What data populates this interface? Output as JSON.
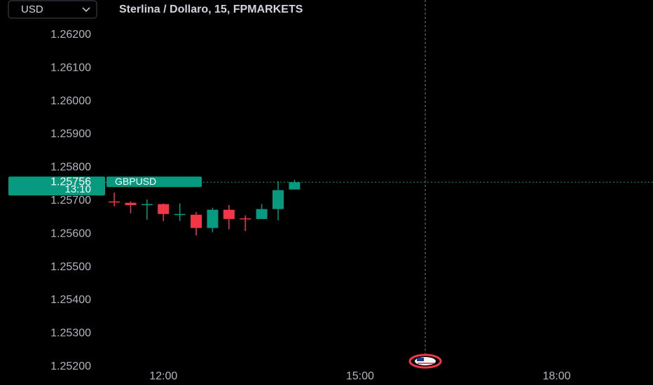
{
  "chart_data": {
    "type": "candlestick",
    "title": "Sterlina / Dollaro, 15, FPMARKETS",
    "currency": "USD",
    "x": [
      11.25,
      11.5,
      11.75,
      12,
      12.25,
      12.5,
      12.75,
      13,
      13.25,
      13.5,
      13.75,
      14
    ],
    "open": [
      1.25698,
      1.25694,
      1.25687,
      1.2569,
      1.25658,
      1.25658,
      1.25618,
      1.25673,
      1.25647,
      1.25645,
      1.25675,
      1.25734
    ],
    "high": [
      1.25725,
      1.25698,
      1.25704,
      1.25692,
      1.25692,
      1.25666,
      1.25679,
      1.25687,
      1.25656,
      1.2569,
      1.25759,
      1.25763
    ],
    "low": [
      1.25683,
      1.25662,
      1.25643,
      1.25639,
      1.25639,
      1.25595,
      1.25605,
      1.25614,
      1.25609,
      1.25645,
      1.25641,
      1.25734
    ],
    "close": [
      1.25695,
      1.25687,
      1.2569,
      1.2566,
      1.2566,
      1.25618,
      1.25673,
      1.25645,
      1.25645,
      1.25675,
      1.25732,
      1.25756
    ],
    "up_color": "#089981",
    "down_color": "#f23645",
    "last_price": 1.25756,
    "countdown": "13:10",
    "symbol": "GBPUSD",
    "xlim": [
      11.11,
      19.47
    ],
    "xticks": [
      {
        "value": 12,
        "label": "12:00"
      },
      {
        "value": 15,
        "label": "15:00"
      },
      {
        "value": 18,
        "label": "18:00"
      }
    ],
    "ylim": [
      1.25187,
      1.26305
    ],
    "yticks": [
      {
        "value": 1.262,
        "label": "1.26200"
      },
      {
        "value": 1.261,
        "label": "1.26100"
      },
      {
        "value": 1.26,
        "label": "1.26000"
      },
      {
        "value": 1.259,
        "label": "1.25900"
      },
      {
        "value": 1.258,
        "label": "1.25800"
      },
      {
        "value": 1.257,
        "label": "1.25700"
      },
      {
        "value": 1.256,
        "label": "1.25600"
      },
      {
        "value": 1.255,
        "label": "1.25500"
      },
      {
        "value": 1.254,
        "label": "1.25400"
      },
      {
        "value": 1.253,
        "label": "1.25300"
      },
      {
        "value": 1.252,
        "label": "1.25200"
      }
    ]
  }
}
